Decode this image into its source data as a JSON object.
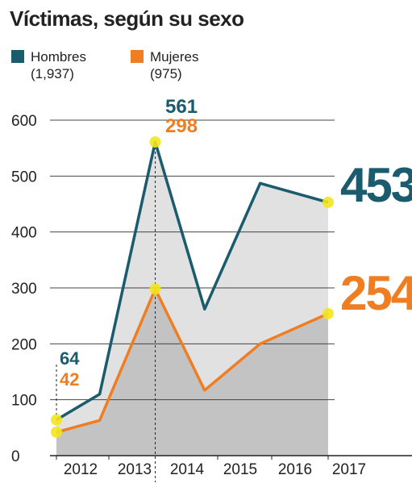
{
  "title": "Víctimas, según su sexo",
  "legend": [
    {
      "label": "Hombres",
      "total": "(1,937)",
      "color": "#1a5b6e"
    },
    {
      "label": "Mujeres",
      "total": "(975)",
      "color": "#ef7d22"
    }
  ],
  "colors": {
    "hombres": "#1a5b6e",
    "mujeres": "#ef7d22",
    "area_upper": "#e2e1e2",
    "area_lower": "#c4c3c4",
    "highlight": "#f3e61f",
    "grid": "#444444"
  },
  "chart_data": {
    "type": "area",
    "title": "Víctimas, según su sexo",
    "categories": [
      "2012",
      "2013",
      "2014",
      "2015",
      "2016",
      "2017"
    ],
    "x": [
      2012,
      2012.7,
      2013.6,
      2014.4,
      2015.3,
      2016.4
    ],
    "series": [
      {
        "name": "Hombres",
        "values": [
          64,
          110,
          561,
          262,
          487,
          453
        ]
      },
      {
        "name": "Mujeres",
        "values": [
          42,
          63,
          298,
          117,
          200,
          254
        ]
      }
    ],
    "ylim": [
      0,
      600
    ],
    "yticks": [
      0,
      100,
      200,
      300,
      400,
      500,
      600
    ],
    "grid": true,
    "legend_position": "top-left",
    "annotations": [
      {
        "series": "Hombres",
        "index": 0,
        "text": "64"
      },
      {
        "series": "Mujeres",
        "index": 0,
        "text": "42"
      },
      {
        "series": "Hombres",
        "index": 2,
        "text": "561"
      },
      {
        "series": "Mujeres",
        "index": 2,
        "text": "298"
      },
      {
        "series": "Hombres",
        "index": 5,
        "text": "453"
      },
      {
        "series": "Mujeres",
        "index": 5,
        "text": "254"
      }
    ]
  }
}
